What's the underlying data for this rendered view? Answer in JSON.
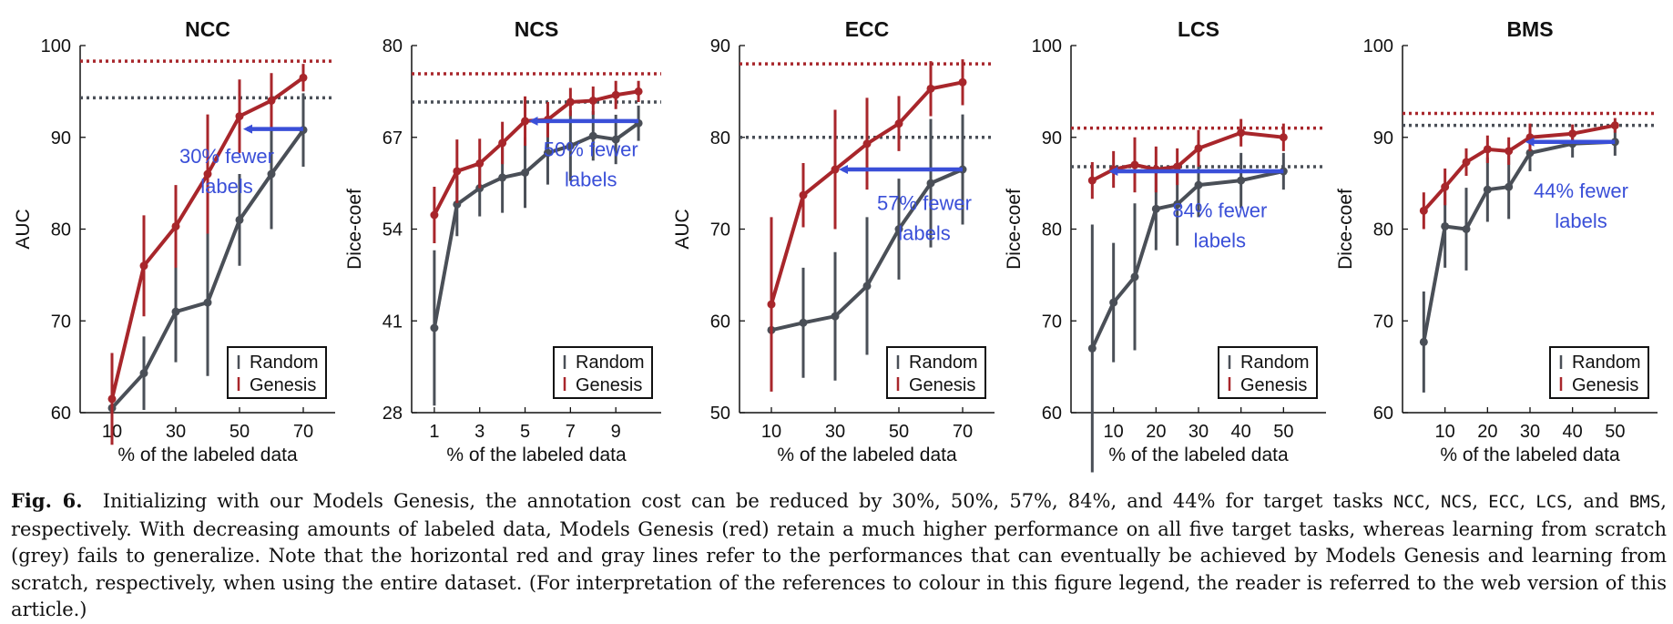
{
  "colors": {
    "random": "#4a4f57",
    "genesis": "#a8262b",
    "arrow": "#3a4fd8",
    "annotation": "#3a4fd8"
  },
  "legend_labels": {
    "random": "Random",
    "genesis": "Genesis"
  },
  "chart_data": [
    {
      "type": "line",
      "title": "NCC",
      "xlabel": "% of the labeled data",
      "ylabel": "AUC",
      "xlim": [
        0,
        80
      ],
      "ylim": [
        60,
        100
      ],
      "xticks": [
        10,
        30,
        50,
        70
      ],
      "yticks": [
        60,
        70,
        80,
        90,
        100
      ],
      "series": [
        {
          "name": "Random",
          "x": [
            10,
            20,
            30,
            40,
            50,
            60,
            70
          ],
          "values": [
            60.5,
            64.3,
            71.0,
            72.0,
            81.0,
            86.0,
            90.8
          ],
          "err": [
            0.8,
            4.0,
            5.5,
            8.0,
            5.0,
            6.0,
            4.0
          ]
        },
        {
          "name": "Genesis",
          "x": [
            10,
            20,
            30,
            40,
            50,
            60,
            70
          ],
          "values": [
            61.5,
            76.0,
            80.3,
            86.0,
            92.3,
            94.0,
            96.5
          ],
          "err": [
            5.0,
            5.5,
            4.5,
            6.5,
            4.0,
            3.0,
            1.5
          ]
        }
      ],
      "hlines": {
        "random": 94.3,
        "genesis": 98.3
      },
      "arrow": {
        "from_x": 70,
        "to_x": 50,
        "y": 90.9
      },
      "annotation": [
        "30% fewer",
        "labels"
      ],
      "annotation_pos": [
        46,
        87.2
      ]
    },
    {
      "type": "line",
      "title": "NCS",
      "xlabel": "% of the labeled data",
      "ylabel": "Dice-coef",
      "xlim": [
        0,
        11
      ],
      "ylim": [
        28,
        80
      ],
      "xticks": [
        1,
        3,
        5,
        7,
        9
      ],
      "yticks": [
        28,
        41,
        54,
        67,
        80
      ],
      "series": [
        {
          "name": "Random",
          "x": [
            1,
            2,
            3,
            4,
            5,
            6,
            7,
            8,
            9,
            10
          ],
          "values": [
            40.0,
            57.5,
            59.8,
            61.3,
            62.0,
            64.8,
            65.8,
            67.2,
            66.7,
            69.0
          ],
          "err": [
            11.0,
            4.5,
            4.0,
            5.0,
            5.0,
            4.5,
            5.0,
            3.5,
            3.5,
            2.5
          ]
        },
        {
          "name": "Genesis",
          "x": [
            1,
            2,
            3,
            4,
            5,
            6,
            7,
            8,
            9,
            10
          ],
          "values": [
            56.0,
            62.2,
            63.3,
            66.2,
            69.3,
            69.5,
            72.0,
            72.2,
            73.0,
            73.5
          ],
          "err": [
            4.0,
            4.5,
            3.5,
            3.0,
            3.5,
            2.5,
            2.0,
            2.0,
            2.0,
            1.5
          ]
        }
      ],
      "hlines": {
        "random": 72.0,
        "genesis": 76.0
      },
      "arrow": {
        "from_x": 10,
        "to_x": 5,
        "y": 69.3
      },
      "annotation": [
        "50% fewer",
        "labels"
      ],
      "annotation_pos": [
        7.9,
        64.3
      ]
    },
    {
      "type": "line",
      "title": "ECC",
      "xlabel": "% of the labeled data",
      "ylabel": "AUC",
      "xlim": [
        0,
        80
      ],
      "ylim": [
        50,
        90
      ],
      "xticks": [
        10,
        30,
        50,
        70
      ],
      "yticks": [
        50,
        60,
        70,
        80,
        90
      ],
      "series": [
        {
          "name": "Random",
          "x": [
            10,
            20,
            30,
            40,
            50,
            60,
            70
          ],
          "values": [
            59.0,
            59.8,
            60.5,
            63.8,
            70.0,
            75.0,
            76.5
          ],
          "err": [
            3.5,
            6.0,
            7.0,
            7.5,
            5.5,
            7.0,
            6.0
          ]
        },
        {
          "name": "Genesis",
          "x": [
            10,
            20,
            30,
            40,
            50,
            60,
            70
          ],
          "values": [
            61.8,
            73.7,
            76.5,
            79.3,
            81.5,
            85.3,
            86.0
          ],
          "err": [
            9.5,
            3.5,
            6.5,
            5.0,
            3.0,
            3.0,
            2.5
          ]
        }
      ],
      "hlines": {
        "random": 80.0,
        "genesis": 88.0
      },
      "arrow": {
        "from_x": 70,
        "to_x": 30,
        "y": 76.5
      },
      "annotation": [
        "57% fewer",
        "labels"
      ],
      "annotation_pos": [
        58,
        72.1
      ]
    },
    {
      "type": "line",
      "title": "LCS",
      "xlabel": "% of the labeled data",
      "ylabel": "Dice-coef",
      "xlim": [
        0,
        60
      ],
      "ylim": [
        60,
        100
      ],
      "xticks": [
        10,
        20,
        30,
        40,
        50
      ],
      "yticks": [
        60,
        70,
        80,
        90,
        100
      ],
      "series": [
        {
          "name": "Random",
          "x": [
            5,
            10,
            15,
            20,
            25,
            30,
            40,
            50
          ],
          "values": [
            67.0,
            72.0,
            74.8,
            82.2,
            82.7,
            84.8,
            85.3,
            86.3
          ],
          "err": [
            13.5,
            6.5,
            8.0,
            4.5,
            4.5,
            3.5,
            3.0,
            2.0
          ]
        },
        {
          "name": "Genesis",
          "x": [
            5,
            10,
            15,
            20,
            25,
            30,
            40,
            50
          ],
          "values": [
            85.3,
            86.5,
            87.0,
            86.5,
            86.8,
            88.8,
            90.5,
            90.0
          ],
          "err": [
            2.0,
            2.0,
            3.0,
            2.5,
            2.0,
            2.0,
            1.5,
            1.5
          ]
        }
      ],
      "hlines": {
        "random": 86.8,
        "genesis": 91.0
      },
      "arrow": {
        "from_x": 50,
        "to_x": 8,
        "y": 86.3
      },
      "annotation": [
        "84% fewer",
        "labels"
      ],
      "annotation_pos": [
        35,
        81.3
      ]
    },
    {
      "type": "line",
      "title": "BMS",
      "xlabel": "% of the labeled data",
      "ylabel": "Dice-coef",
      "xlim": [
        0,
        60
      ],
      "ylim": [
        60,
        100
      ],
      "xticks": [
        10,
        20,
        30,
        40,
        50
      ],
      "yticks": [
        60,
        70,
        80,
        90,
        100
      ],
      "series": [
        {
          "name": "Random",
          "x": [
            5,
            10,
            15,
            20,
            25,
            30,
            40,
            50
          ],
          "values": [
            67.7,
            80.3,
            80.0,
            84.3,
            84.6,
            88.3,
            89.3,
            89.5
          ],
          "err": [
            5.5,
            4.5,
            4.5,
            3.5,
            3.5,
            2.0,
            1.5,
            1.5
          ]
        },
        {
          "name": "Genesis",
          "x": [
            5,
            10,
            15,
            20,
            25,
            30,
            40,
            50
          ],
          "values": [
            82.0,
            84.6,
            87.3,
            88.7,
            88.5,
            90.0,
            90.4,
            91.3
          ],
          "err": [
            2.0,
            2.0,
            1.5,
            1.5,
            1.5,
            1.5,
            1.0,
            0.8
          ]
        }
      ],
      "hlines": {
        "random": 91.3,
        "genesis": 92.6
      },
      "arrow": {
        "from_x": 50,
        "to_x": 28,
        "y": 89.5
      },
      "annotation": [
        "44% fewer",
        "labels"
      ],
      "annotation_pos": [
        42,
        83.4
      ]
    }
  ],
  "caption": {
    "label": "Fig. 6.",
    "parts": [
      "Initializing with our Models Genesis, the annotation cost can be reduced by 30%, 50%, 57%, 84%, and 44% for target tasks ",
      "NCC",
      ", ",
      "NCS",
      ", ",
      "ECC",
      ", ",
      "LCS",
      ", and ",
      "BMS",
      ", respectively. With decreasing amounts of labeled data, Models Genesis (red) retain a much higher performance on all five target tasks, whereas learning from scratch (grey) fails to generalize. Note that the horizontal red and gray lines refer to the performances that can eventually be achieved by Models Genesis and learning from scratch, respectively, when using the entire dataset. (For interpretation of the references to colour in this figure legend, the reader is referred to the web version of this article.)"
    ]
  }
}
